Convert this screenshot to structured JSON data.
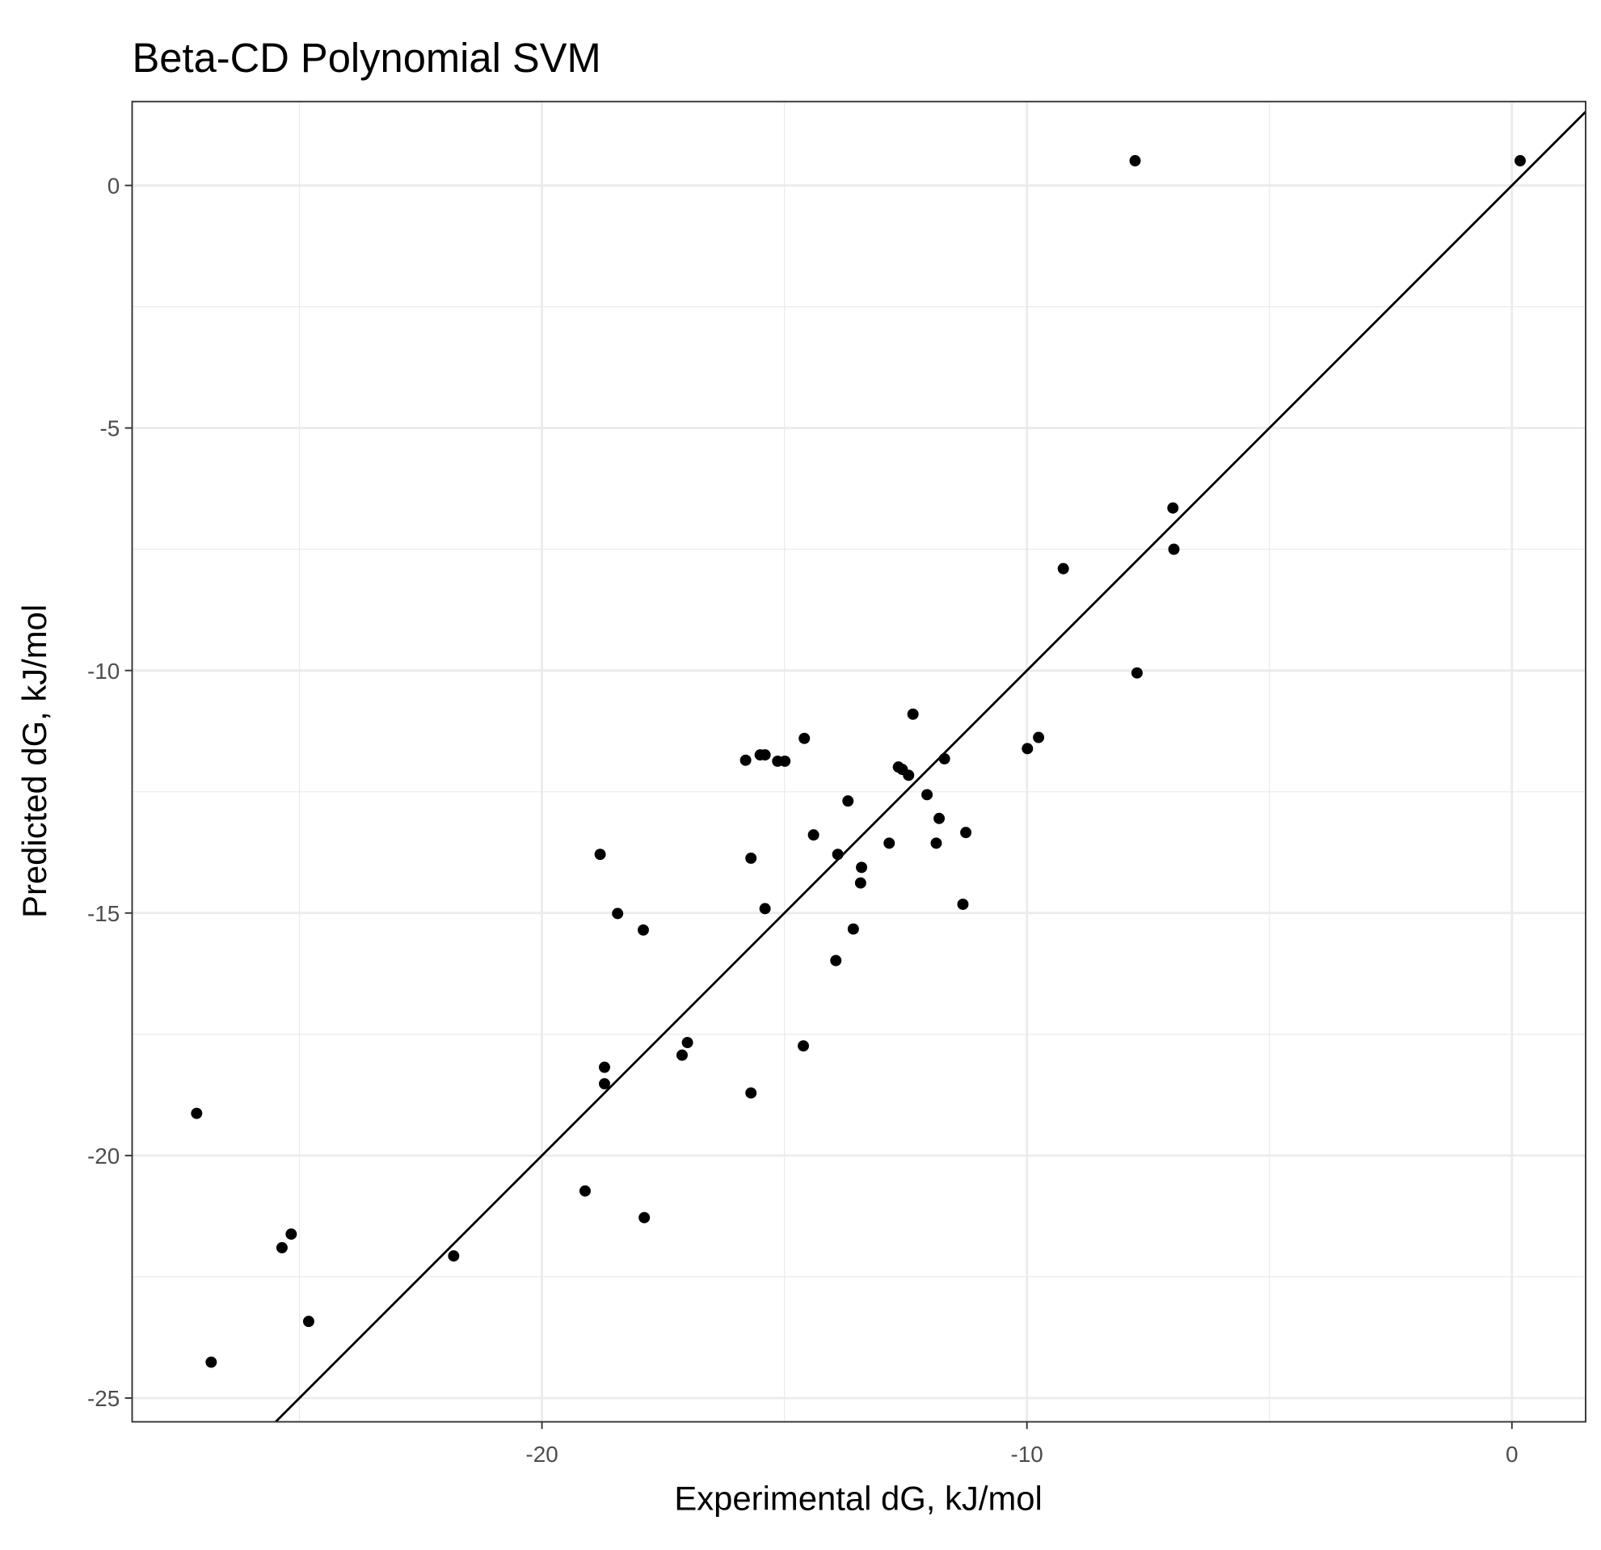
{
  "chart_data": {
    "type": "scatter",
    "title": "Beta-CD Polynomial SVM",
    "x_label": "Experimental dG, kJ/mol",
    "y_label": "Predicted dG, kJ/mol",
    "xlim": [
      -28.45,
      1.52
    ],
    "ylim": [
      -25.49,
      1.73
    ],
    "xticks": [
      -20,
      -10,
      0
    ],
    "yticks": [
      0,
      -5,
      -10,
      -15,
      -20,
      -25
    ],
    "xminor": [
      -25,
      -15,
      -5
    ],
    "yminor": [
      -2.5,
      -7.5,
      -12.5,
      -17.5,
      -22.5
    ],
    "grid": true,
    "identity_line": true,
    "color": "#000000",
    "x": [
      -7.77,
      0.17,
      -6.99,
      -6.97,
      -9.25,
      -7.73,
      -9.99,
      -9.76,
      -12.35,
      -14.59,
      -15.8,
      -15.5,
      -15.4,
      -15.14,
      -14.99,
      -12.65,
      -12.57,
      -12.44,
      -11.7,
      -12.06,
      -13.69,
      -11.81,
      -14.4,
      -12.84,
      -11.87,
      -11.26,
      -18.8,
      -15.69,
      -13.9,
      -13.41,
      -13.43,
      -15.4,
      -11.32,
      -18.44,
      -17.91,
      -13.58,
      -13.94,
      -17.0,
      -17.11,
      -14.61,
      -18.71,
      -18.71,
      -15.69,
      -27.12,
      -19.11,
      -17.89,
      -25.17,
      -25.36,
      -21.82,
      -24.81,
      -26.82
    ],
    "values": [
      0.51,
      0.51,
      -6.65,
      -7.5,
      -7.9,
      -10.05,
      -11.61,
      -11.38,
      -10.9,
      -11.4,
      -11.85,
      -11.74,
      -11.74,
      -11.87,
      -11.87,
      -11.99,
      -12.04,
      -12.16,
      -11.82,
      -12.56,
      -12.69,
      -13.05,
      -13.39,
      -13.56,
      -13.56,
      -13.34,
      -13.79,
      -13.87,
      -13.79,
      -14.06,
      -14.38,
      -14.91,
      -14.82,
      -15.01,
      -15.35,
      -15.33,
      -15.98,
      -17.67,
      -17.93,
      -17.74,
      -18.18,
      -18.52,
      -18.71,
      -19.13,
      -20.73,
      -21.28,
      -21.62,
      -21.9,
      -22.07,
      -23.42,
      -24.26
    ]
  }
}
